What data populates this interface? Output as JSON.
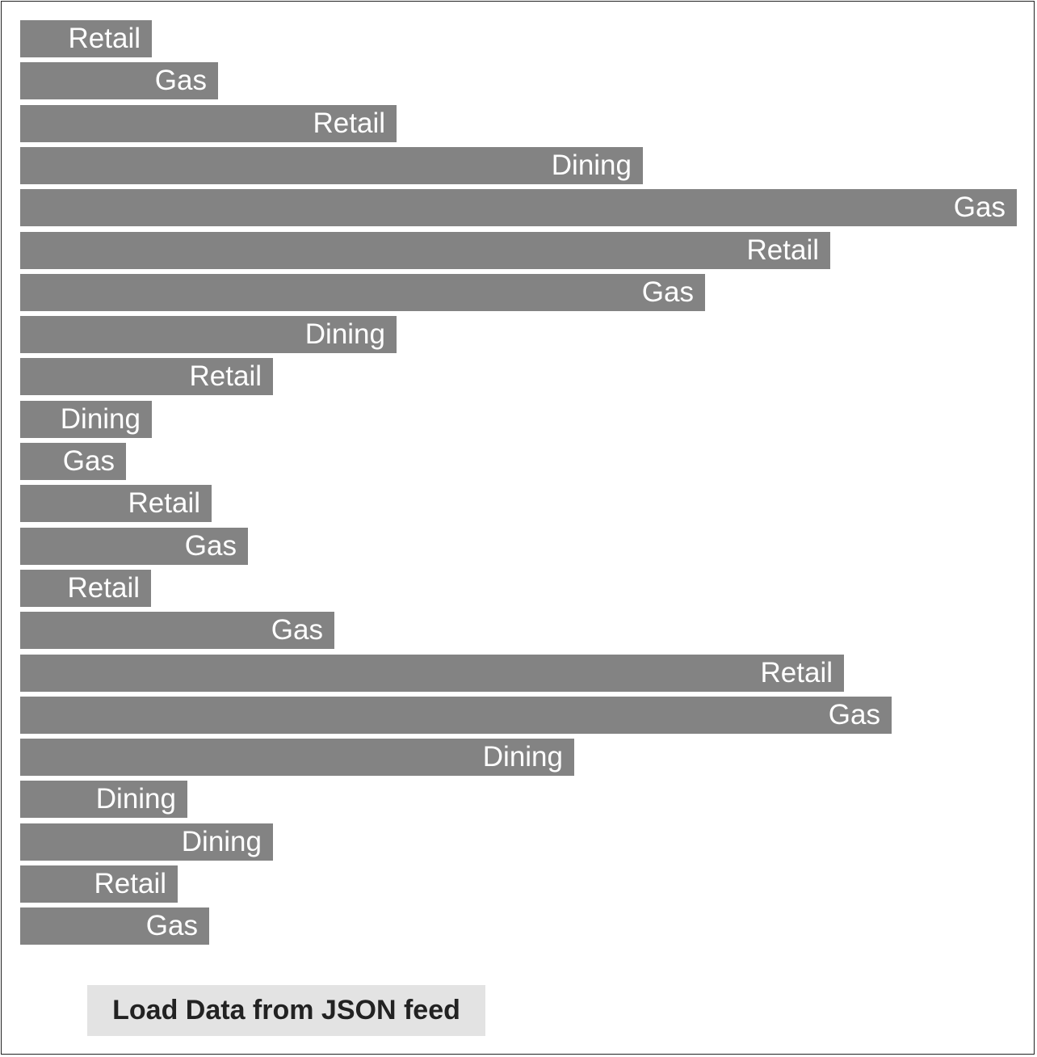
{
  "chart_data": {
    "type": "bar",
    "orientation": "horizontal",
    "bar_color": "#838383",
    "categories": [
      "Retail",
      "Gas",
      "Retail",
      "Dining",
      "Gas",
      "Retail",
      "Gas",
      "Dining",
      "Retail",
      "Dining",
      "Gas",
      "Retail",
      "Gas",
      "Retail",
      "Gas",
      "Retail",
      "Gas",
      "Dining",
      "Dining",
      "Dining",
      "Retail",
      "Gas"
    ],
    "values": [
      163,
      245,
      466,
      771,
      1234,
      1003,
      848,
      466,
      313,
      163,
      131,
      237,
      282,
      162,
      389,
      1020,
      1079,
      686,
      207,
      313,
      195,
      234
    ],
    "xlim": [
      0,
      1234
    ],
    "title": "",
    "xlabel": "",
    "ylabel": ""
  },
  "controls": {
    "load_button_label": "Load Data from JSON feed"
  }
}
